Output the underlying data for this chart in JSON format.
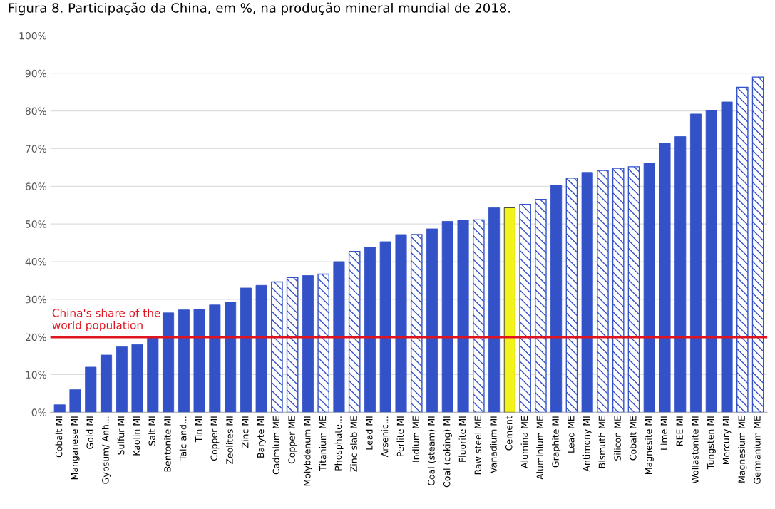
{
  "chart_data": {
    "type": "bar",
    "title": "Figura 8. Participação da China, em %, na produção mineral mundial de 2018.",
    "categories": [
      "Cobalt MI",
      "Manganese MI",
      "Gold MI",
      "Gypsum/ Anh...",
      "Sulfur MI",
      "Kaolin MI",
      "Salt MI",
      "Bentonite MI",
      "Talc and...",
      "Tin MI",
      "Copper MI",
      "Zeolites MI",
      "Zinc MI",
      "Baryte MI",
      "Cadmium ME",
      "Copper ME",
      "Molybdenum MI",
      "Titanium ME",
      "Phosphate...",
      "Zinc slab ME",
      "Lead MI",
      "Arsenic...",
      "Perlite MI",
      "Indium ME",
      "Coal (steam) MI",
      "Coal (coking) MI",
      "Fluorite MI",
      "Raw steel ME",
      "Vanadium MI",
      "Cement",
      "Alumina ME",
      "Aluminium ME",
      "Graphite MI",
      "Lead ME",
      "Antimony MI",
      "Bismuth ME",
      "Silicon ME",
      "Cobalt ME",
      "Magnesite MI",
      "Lime MI",
      "REE MI",
      "Wollastonite MI",
      "Tungsten MI",
      "Mercury MI",
      "Magnesium ME",
      "Germanium ME"
    ],
    "series": [
      {
        "color": "#3352c8",
        "colors": [
          "#3352c8",
          "#3352c8",
          "#3352c8",
          "#3352c8",
          "#3352c8",
          "#3352c8",
          "#3352c8",
          "#3352c8",
          "#3352c8",
          "#3352c8",
          "#3352c8",
          "#3352c8",
          "#3352c8",
          "#3352c8",
          null,
          null,
          "#3352c8",
          null,
          "#3352c8",
          null,
          "#3352c8",
          "#3352c8",
          "#3352c8",
          null,
          "#3352c8",
          "#3352c8",
          "#3352c8",
          null,
          "#3352c8",
          "#f2f21c",
          null,
          null,
          "#3352c8",
          null,
          "#3352c8",
          null,
          null,
          null,
          "#3352c8",
          "#3352c8",
          "#3352c8",
          "#3352c8",
          "#3352c8",
          "#3352c8",
          null,
          null
        ],
        "values": [
          2,
          6,
          12,
          15.2,
          17.4,
          18,
          20.2,
          26.4,
          27.2,
          27.3,
          28.5,
          29.2,
          33,
          33.7,
          null,
          null,
          36.3,
          null,
          40,
          null,
          43.8,
          45.3,
          47.2,
          null,
          48.7,
          50.7,
          51,
          null,
          54.3,
          54.3,
          null,
          null,
          60.3,
          null,
          63.7,
          null,
          null,
          null,
          66.1,
          71.5,
          73.2,
          79.2,
          80.1,
          82.4,
          null,
          null
        ]
      },
      {
        "color": "#3352c8",
        "values": [
          null,
          null,
          null,
          null,
          null,
          null,
          null,
          null,
          null,
          null,
          null,
          null,
          null,
          null,
          34.6,
          35.8,
          null,
          36.7,
          null,
          42.7,
          null,
          null,
          null,
          47.2,
          null,
          null,
          null,
          51.1,
          null,
          null,
          55.2,
          56.5,
          null,
          62.2,
          null,
          64.2,
          64.8,
          65.2,
          null,
          null,
          null,
          null,
          null,
          null,
          86.3,
          89
        ]
      }
    ],
    "ylim": [
      0,
      100
    ],
    "yticks": [
      {
        "value": 0,
        "label": "0%"
      },
      {
        "value": 10,
        "label": "10%"
      },
      {
        "value": 20,
        "label": "20%"
      },
      {
        "value": 30,
        "label": "30%"
      },
      {
        "value": 40,
        "label": "40%"
      },
      {
        "value": 50,
        "label": "50%"
      },
      {
        "value": 60,
        "label": "60%"
      },
      {
        "value": 70,
        "label": "70%"
      },
      {
        "value": 80,
        "label": "80%"
      },
      {
        "value": 90,
        "label": "90%"
      },
      {
        "value": 100,
        "label": "100%"
      }
    ],
    "grid": "y",
    "ref_lines": [
      {
        "axis": "y",
        "value": 20,
        "label": "China's share of the\nworld population",
        "color": "#e0141e"
      }
    ]
  }
}
